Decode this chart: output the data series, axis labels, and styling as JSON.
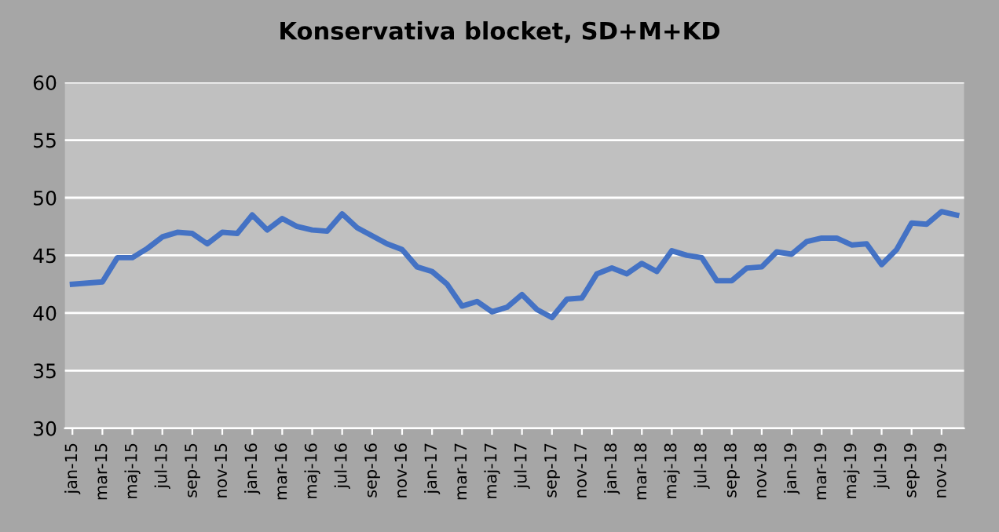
{
  "chart_data": {
    "type": "line",
    "title": "Konservativa blocket, SD+M+KD",
    "categories": [
      "jan-15",
      null,
      "mar-15",
      null,
      "maj-15",
      null,
      "jul-15",
      null,
      "sep-15",
      null,
      "nov-15",
      null,
      "jan-16",
      null,
      "mar-16",
      null,
      "maj-16",
      null,
      "jul-16",
      null,
      "sep-16",
      null,
      "nov-16",
      null,
      "jan-17",
      null,
      "mar-17",
      null,
      "maj-17",
      null,
      "jul-17",
      null,
      "sep-17",
      null,
      "nov-17",
      null,
      "jan-18",
      null,
      "mar-18",
      null,
      "maj-18",
      null,
      "jul-18",
      null,
      "sep-18",
      null,
      "nov-18",
      null,
      "jan-19",
      null,
      "mar-19",
      null,
      "maj-19",
      null,
      "jul-19",
      null,
      "sep-19",
      null,
      "nov-19",
      null
    ],
    "series": [
      {
        "color": "#4472c4",
        "values": [
          42.5,
          42.6,
          42.7,
          44.8,
          44.8,
          45.6,
          46.6,
          47.0,
          46.9,
          46.0,
          47.0,
          46.9,
          48.5,
          47.2,
          48.2,
          47.5,
          47.2,
          47.1,
          48.6,
          47.4,
          46.7,
          46.0,
          45.5,
          44.0,
          43.6,
          42.5,
          40.6,
          41.0,
          40.1,
          40.5,
          41.6,
          40.3,
          39.6,
          41.2,
          41.3,
          43.4,
          43.9,
          43.4,
          44.3,
          43.6,
          45.4,
          45.0,
          44.8,
          42.8,
          42.8,
          43.9,
          44.0,
          45.3,
          45.1,
          46.2,
          46.5,
          46.5,
          45.9,
          46.0,
          44.2,
          45.5,
          47.8,
          47.7,
          48.8,
          48.5
        ]
      }
    ],
    "ylim": [
      30,
      60
    ],
    "yticks": [
      30,
      35,
      40,
      45,
      50,
      55,
      60
    ],
    "grid": "y",
    "marker": "none",
    "line_style": "solid"
  }
}
